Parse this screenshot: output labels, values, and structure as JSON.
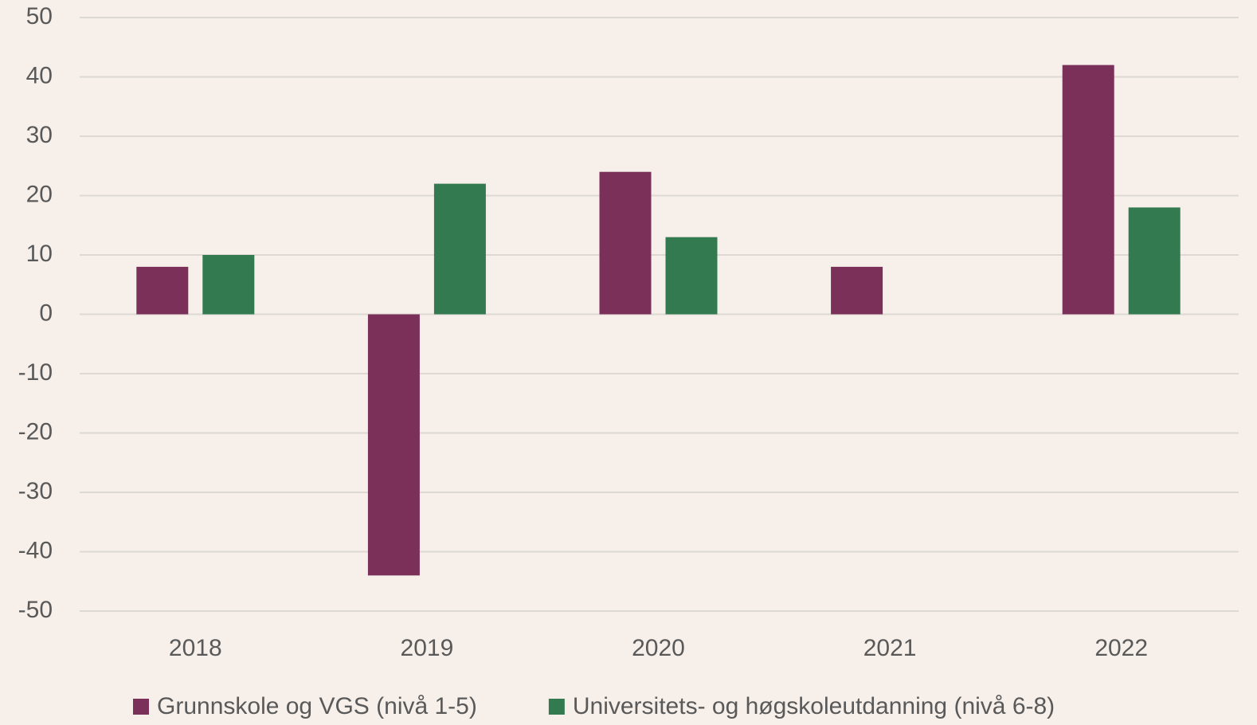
{
  "chart_data": {
    "type": "bar",
    "categories": [
      "2018",
      "2019",
      "2020",
      "2021",
      "2022"
    ],
    "series": [
      {
        "name": "Grunnskole og VGS (nivå 1-5)",
        "color": "#7b3059",
        "values": [
          8,
          -44,
          24,
          8,
          42
        ]
      },
      {
        "name": "Universitets- og høgskoleutdanning (nivå 6-8)",
        "color": "#347a50",
        "values": [
          10,
          22,
          13,
          0,
          18
        ]
      }
    ],
    "ylim": [
      -50,
      50
    ],
    "yticks": [
      -50,
      -40,
      -30,
      -20,
      -10,
      0,
      10,
      20,
      30,
      40,
      50
    ],
    "grid": true,
    "legend": "bottom"
  }
}
